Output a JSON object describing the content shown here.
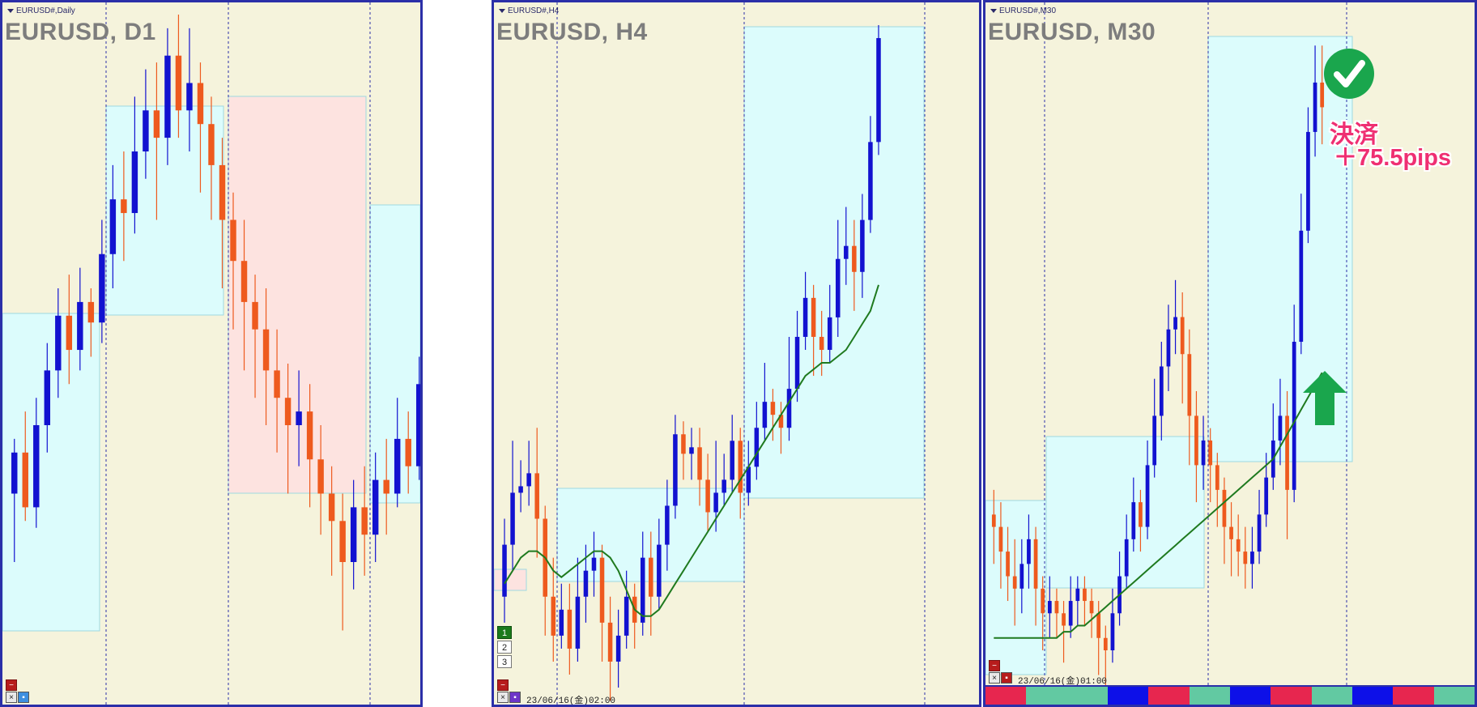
{
  "colors": {
    "background": "#f5f3dc",
    "bull_candle": "#1212d0",
    "bear_candle": "#ee5a1e",
    "box_blue": "#dcfcfc",
    "box_red": "#fde3e0",
    "ma_line": "#1f7a1f",
    "window_border": "#2b2fa8",
    "annotation_text": "#ef2f72",
    "check_green": "#1aa64d"
  },
  "panels": [
    {
      "tab_label": "EURUSD#,Daily",
      "title": "EURUSD, D1",
      "controls": {
        "minus_symbol": "−",
        "close_symbol": "×",
        "extra_symbol": "▪"
      }
    },
    {
      "tab_label": "EURUSD#,H4",
      "title": "EURUSD, H4",
      "buttons": [
        "1",
        "2",
        "3"
      ],
      "timestamp": "23/06/16(金)02:00",
      "controls": {
        "minus_symbol": "−",
        "close_symbol": "×",
        "extra_symbol": "▪"
      }
    },
    {
      "tab_label": "EURUSD#,M30",
      "title": "EURUSD, M30",
      "timestamp": "23/06/16(金)01:00",
      "annotation_line1": "決済",
      "annotation_line2": "＋75.5pips",
      "check_icon": "check-circle-icon",
      "arrow_icon": "up-arrow-icon",
      "controls": {
        "minus_symbol": "−",
        "close_symbol": "×",
        "extra_symbol": "▪"
      }
    }
  ],
  "chart_data": [
    {
      "type": "candlestick",
      "symbol": "EURUSD",
      "timeframe": "D1",
      "candles": [
        [
          0.3,
          0.36,
          0.2,
          0.38
        ],
        [
          0.36,
          0.28,
          0.26,
          0.42
        ],
        [
          0.28,
          0.4,
          0.25,
          0.44
        ],
        [
          0.4,
          0.48,
          0.36,
          0.52
        ],
        [
          0.48,
          0.56,
          0.44,
          0.6
        ],
        [
          0.56,
          0.51,
          0.46,
          0.62
        ],
        [
          0.51,
          0.58,
          0.48,
          0.63
        ],
        [
          0.58,
          0.55,
          0.5,
          0.6
        ],
        [
          0.55,
          0.65,
          0.52,
          0.7
        ],
        [
          0.65,
          0.73,
          0.6,
          0.78
        ],
        [
          0.73,
          0.71,
          0.64,
          0.8
        ],
        [
          0.71,
          0.8,
          0.68,
          0.88
        ],
        [
          0.8,
          0.86,
          0.76,
          0.92
        ],
        [
          0.86,
          0.82,
          0.7,
          0.93
        ],
        [
          0.82,
          0.94,
          0.78,
          0.98
        ],
        [
          0.94,
          0.86,
          0.82,
          1.0
        ],
        [
          0.86,
          0.9,
          0.8,
          0.98
        ],
        [
          0.9,
          0.84,
          0.74,
          0.93
        ],
        [
          0.84,
          0.78,
          0.7,
          0.88
        ],
        [
          0.78,
          0.7,
          0.6,
          0.82
        ],
        [
          0.7,
          0.64,
          0.54,
          0.74
        ],
        [
          0.64,
          0.58,
          0.48,
          0.7
        ],
        [
          0.58,
          0.54,
          0.44,
          0.62
        ],
        [
          0.54,
          0.48,
          0.4,
          0.6
        ],
        [
          0.48,
          0.44,
          0.36,
          0.54
        ],
        [
          0.44,
          0.4,
          0.3,
          0.49
        ],
        [
          0.4,
          0.42,
          0.34,
          0.48
        ],
        [
          0.42,
          0.35,
          0.28,
          0.46
        ],
        [
          0.35,
          0.3,
          0.24,
          0.4
        ],
        [
          0.3,
          0.26,
          0.18,
          0.34
        ],
        [
          0.26,
          0.2,
          0.1,
          0.3
        ],
        [
          0.2,
          0.28,
          0.16,
          0.32
        ],
        [
          0.28,
          0.24,
          0.18,
          0.34
        ],
        [
          0.24,
          0.32,
          0.2,
          0.36
        ],
        [
          0.32,
          0.3,
          0.24,
          0.38
        ],
        [
          0.3,
          0.38,
          0.28,
          0.44
        ],
        [
          0.38,
          0.34,
          0.3,
          0.42
        ],
        [
          0.34,
          0.46,
          0.32,
          0.5
        ],
        [
          0.46,
          0.58,
          0.42,
          0.66
        ]
      ]
    },
    {
      "type": "candlestick",
      "symbol": "EURUSD",
      "timeframe": "H4",
      "candles": [
        [
          0.12,
          0.2,
          0.08,
          0.24
        ],
        [
          0.2,
          0.28,
          0.16,
          0.36
        ],
        [
          0.28,
          0.29,
          0.25,
          0.33
        ],
        [
          0.29,
          0.31,
          0.26,
          0.36
        ],
        [
          0.31,
          0.24,
          0.18,
          0.38
        ],
        [
          0.24,
          0.12,
          0.06,
          0.26
        ],
        [
          0.12,
          0.06,
          0.02,
          0.18
        ],
        [
          0.06,
          0.1,
          0.04,
          0.14
        ],
        [
          0.1,
          0.04,
          0.0,
          0.14
        ],
        [
          0.04,
          0.12,
          0.02,
          0.18
        ],
        [
          0.12,
          0.16,
          0.08,
          0.2
        ],
        [
          0.16,
          0.18,
          0.12,
          0.22
        ],
        [
          0.18,
          0.08,
          0.02,
          0.2
        ],
        [
          0.08,
          0.02,
          -0.04,
          0.12
        ],
        [
          0.02,
          0.06,
          -0.02,
          0.1
        ],
        [
          0.06,
          0.12,
          0.04,
          0.16
        ],
        [
          0.12,
          0.08,
          0.04,
          0.14
        ],
        [
          0.08,
          0.18,
          0.06,
          0.22
        ],
        [
          0.18,
          0.12,
          0.06,
          0.22
        ],
        [
          0.12,
          0.2,
          0.1,
          0.24
        ],
        [
          0.2,
          0.26,
          0.16,
          0.3
        ],
        [
          0.26,
          0.37,
          0.24,
          0.4
        ],
        [
          0.37,
          0.34,
          0.3,
          0.39
        ],
        [
          0.34,
          0.35,
          0.3,
          0.38
        ],
        [
          0.35,
          0.3,
          0.26,
          0.38
        ],
        [
          0.3,
          0.25,
          0.22,
          0.34
        ],
        [
          0.25,
          0.28,
          0.22,
          0.36
        ],
        [
          0.28,
          0.3,
          0.26,
          0.34
        ],
        [
          0.3,
          0.36,
          0.28,
          0.4
        ],
        [
          0.36,
          0.28,
          0.24,
          0.38
        ],
        [
          0.28,
          0.32,
          0.26,
          0.36
        ],
        [
          0.32,
          0.38,
          0.3,
          0.42
        ],
        [
          0.38,
          0.42,
          0.36,
          0.48
        ],
        [
          0.42,
          0.4,
          0.36,
          0.44
        ],
        [
          0.4,
          0.38,
          0.34,
          0.42
        ],
        [
          0.38,
          0.44,
          0.36,
          0.52
        ],
        [
          0.44,
          0.52,
          0.42,
          0.56
        ],
        [
          0.52,
          0.58,
          0.5,
          0.62
        ],
        [
          0.58,
          0.52,
          0.46,
          0.6
        ],
        [
          0.52,
          0.5,
          0.46,
          0.56
        ],
        [
          0.5,
          0.55,
          0.48,
          0.6
        ],
        [
          0.55,
          0.64,
          0.52,
          0.7
        ],
        [
          0.64,
          0.66,
          0.6,
          0.72
        ],
        [
          0.66,
          0.62,
          0.56,
          0.7
        ],
        [
          0.62,
          0.7,
          0.58,
          0.74
        ],
        [
          0.7,
          0.82,
          0.68,
          0.86
        ],
        [
          0.82,
          0.98,
          0.8,
          1.0
        ]
      ],
      "ma_line": [
        0.14,
        0.16,
        0.18,
        0.19,
        0.19,
        0.18,
        0.16,
        0.15,
        0.16,
        0.17,
        0.18,
        0.19,
        0.19,
        0.18,
        0.16,
        0.13,
        0.1,
        0.09,
        0.09,
        0.1,
        0.12,
        0.14,
        0.16,
        0.18,
        0.2,
        0.22,
        0.24,
        0.26,
        0.28,
        0.3,
        0.32,
        0.34,
        0.36,
        0.38,
        0.4,
        0.42,
        0.44,
        0.46,
        0.47,
        0.48,
        0.48,
        0.49,
        0.5,
        0.52,
        0.54,
        0.56,
        0.6
      ]
    },
    {
      "type": "candlestick",
      "symbol": "EURUSD",
      "timeframe": "M30",
      "candles": [
        [
          0.22,
          0.2,
          0.14,
          0.26
        ],
        [
          0.2,
          0.16,
          0.1,
          0.24
        ],
        [
          0.16,
          0.12,
          0.08,
          0.2
        ],
        [
          0.12,
          0.1,
          0.04,
          0.18
        ],
        [
          0.1,
          0.14,
          0.06,
          0.18
        ],
        [
          0.14,
          0.18,
          0.1,
          0.22
        ],
        [
          0.18,
          0.1,
          0.04,
          0.2
        ],
        [
          0.1,
          0.06,
          0.0,
          0.12
        ],
        [
          0.06,
          0.08,
          0.02,
          0.12
        ],
        [
          0.08,
          0.06,
          0.02,
          0.1
        ],
        [
          0.06,
          0.04,
          -0.02,
          0.08
        ],
        [
          0.04,
          0.08,
          0.02,
          0.12
        ],
        [
          0.08,
          0.1,
          0.04,
          0.12
        ],
        [
          0.1,
          0.08,
          0.04,
          0.12
        ],
        [
          0.08,
          0.06,
          0.02,
          0.1
        ],
        [
          0.06,
          0.02,
          -0.04,
          0.08
        ],
        [
          0.02,
          0.0,
          -0.06,
          0.04
        ],
        [
          0.0,
          0.06,
          -0.02,
          0.1
        ],
        [
          0.06,
          0.12,
          0.04,
          0.16
        ],
        [
          0.12,
          0.18,
          0.1,
          0.22
        ],
        [
          0.18,
          0.24,
          0.16,
          0.28
        ],
        [
          0.24,
          0.2,
          0.16,
          0.26
        ],
        [
          0.2,
          0.3,
          0.18,
          0.34
        ],
        [
          0.3,
          0.38,
          0.28,
          0.44
        ],
        [
          0.38,
          0.46,
          0.34,
          0.5
        ],
        [
          0.46,
          0.52,
          0.42,
          0.56
        ],
        [
          0.52,
          0.54,
          0.48,
          0.6
        ],
        [
          0.54,
          0.48,
          0.4,
          0.58
        ],
        [
          0.48,
          0.38,
          0.3,
          0.52
        ],
        [
          0.38,
          0.3,
          0.24,
          0.42
        ],
        [
          0.3,
          0.34,
          0.26,
          0.38
        ],
        [
          0.34,
          0.3,
          0.24,
          0.36
        ],
        [
          0.3,
          0.26,
          0.2,
          0.32
        ],
        [
          0.26,
          0.2,
          0.14,
          0.28
        ],
        [
          0.2,
          0.18,
          0.12,
          0.24
        ],
        [
          0.18,
          0.16,
          0.12,
          0.22
        ],
        [
          0.16,
          0.14,
          0.1,
          0.2
        ],
        [
          0.14,
          0.16,
          0.1,
          0.2
        ],
        [
          0.16,
          0.22,
          0.14,
          0.26
        ],
        [
          0.22,
          0.28,
          0.2,
          0.32
        ],
        [
          0.28,
          0.34,
          0.26,
          0.4
        ],
        [
          0.34,
          0.38,
          0.3,
          0.44
        ],
        [
          0.38,
          0.26,
          0.18,
          0.42
        ],
        [
          0.26,
          0.5,
          0.24,
          0.56
        ],
        [
          0.5,
          0.68,
          0.48,
          0.74
        ],
        [
          0.68,
          0.84,
          0.66,
          0.88
        ],
        [
          0.84,
          0.92,
          0.8,
          0.98
        ],
        [
          0.92,
          0.88,
          0.82,
          0.98
        ]
      ],
      "ma_line": [
        0.02,
        0.02,
        0.02,
        0.02,
        0.02,
        0.02,
        0.02,
        0.02,
        0.02,
        0.02,
        0.03,
        0.03,
        0.04,
        0.04,
        0.05,
        0.06,
        0.07,
        0.08,
        0.09,
        0.1,
        0.11,
        0.12,
        0.13,
        0.14,
        0.15,
        0.16,
        0.17,
        0.18,
        0.19,
        0.2,
        0.21,
        0.22,
        0.23,
        0.24,
        0.25,
        0.26,
        0.27,
        0.28,
        0.29,
        0.3,
        0.31,
        0.33,
        0.35,
        0.37,
        0.39,
        0.41,
        0.43,
        0.45
      ]
    }
  ],
  "status_bar_colors": [
    "#e7264f",
    "#62c9a2",
    "#62c9a2",
    "#0d10e8",
    "#e7264f",
    "#62c9a2",
    "#0d10e8",
    "#e7264f",
    "#62c9a2",
    "#0d10e8",
    "#e7264f",
    "#62c9a2"
  ]
}
